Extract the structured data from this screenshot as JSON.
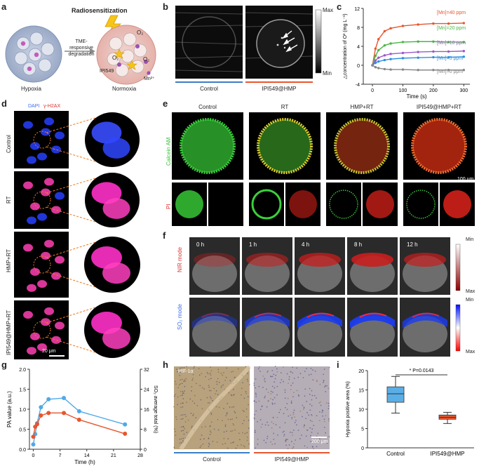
{
  "panels": [
    "a",
    "b",
    "c",
    "d",
    "e",
    "f",
    "g",
    "h",
    "i"
  ],
  "a": {
    "title": "Radiosensitization",
    "arrow_text": "TME-responsive degradation",
    "arrow_line1": "TME-responsive",
    "arrow_line2": "degradation",
    "o2_label": "O₂",
    "drug_label": "IPI549",
    "mn_label": "Mn²⁺",
    "left_caption": "Hypoxia",
    "right_caption": "Normoxia"
  },
  "b": {
    "scale_max": "Max",
    "scale_min": "Min",
    "groups": [
      "Control",
      "IPI549@HMP"
    ],
    "colors": {
      "control": "#3b7fc4",
      "treated": "#e8552e"
    }
  },
  "c": {
    "ylabel": "△concentration of O² (mg L⁻¹)",
    "xlabel": "Time (s)",
    "xticks": [
      "0",
      "100",
      "200",
      "300"
    ],
    "yticks": [
      "-4",
      "0",
      "4",
      "8",
      "12"
    ]
  },
  "chart_data": [
    {
      "type": "line",
      "panel": "c",
      "xlabel": "Time (s)",
      "ylabel": "△concentration of O² (mg L⁻¹)",
      "xlim": [
        -30,
        320
      ],
      "ylim": [
        -4,
        12
      ],
      "series": [
        {
          "name": "[Mn]=40 ppm",
          "color": "#e8552e",
          "x": [
            0,
            10,
            20,
            40,
            60,
            100,
            150,
            200,
            250,
            300
          ],
          "y": [
            0,
            3.5,
            5.5,
            7.2,
            7.8,
            8.3,
            8.6,
            8.8,
            8.8,
            8.9
          ]
        },
        {
          "name": "[Mn]=20 ppm",
          "color": "#4bb543",
          "x": [
            0,
            10,
            20,
            40,
            60,
            100,
            150,
            200,
            250,
            300
          ],
          "y": [
            0,
            2.0,
            3.2,
            4.2,
            4.6,
            4.9,
            5.0,
            5.0,
            4.9,
            4.9
          ]
        },
        {
          "name": "[Mn]=10 ppm",
          "color": "#9b59c9",
          "x": [
            0,
            10,
            20,
            40,
            60,
            100,
            150,
            200,
            250,
            300
          ],
          "y": [
            0,
            1.0,
            1.6,
            2.1,
            2.4,
            2.6,
            2.8,
            2.9,
            2.9,
            3.0
          ]
        },
        {
          "name": "[Mn]=5 ppm",
          "color": "#2f8fe0",
          "x": [
            0,
            10,
            20,
            40,
            60,
            100,
            150,
            200,
            250,
            300
          ],
          "y": [
            0,
            0.5,
            0.8,
            1.1,
            1.3,
            1.5,
            1.6,
            1.7,
            1.7,
            1.8
          ]
        },
        {
          "name": "[Mn]=0 ppm",
          "color": "#888888",
          "x": [
            0,
            10,
            20,
            40,
            60,
            100,
            150,
            200,
            250,
            300
          ],
          "y": [
            0,
            -0.4,
            -0.6,
            -0.8,
            -0.9,
            -0.9,
            -1.0,
            -1.0,
            -1.0,
            -1.0
          ]
        }
      ]
    },
    {
      "type": "line",
      "panel": "g",
      "xlabel": "Time (h)",
      "ylabel": "PA value (a.u.)",
      "y2label": "SO₂ average total (%)",
      "xlim": [
        -1,
        28
      ],
      "ylim": [
        0,
        2.0
      ],
      "y2lim": [
        0,
        32
      ],
      "series": [
        {
          "name": "PA value",
          "axis": "left",
          "color": "#4fa9e8",
          "x": [
            0,
            0.5,
            1,
            2,
            4,
            8,
            12,
            24
          ],
          "y": [
            0.12,
            0.38,
            0.65,
            1.05,
            1.25,
            1.28,
            0.95,
            0.62
          ]
        },
        {
          "name": "SO₂ average total",
          "axis": "right",
          "color": "#e8552e",
          "x": [
            0,
            0.5,
            1,
            2,
            4,
            8,
            12,
            24
          ],
          "y": [
            5,
            9,
            10,
            13.5,
            14.5,
            14.5,
            11.8,
            6.2
          ]
        }
      ]
    },
    {
      "type": "box",
      "panel": "i",
      "ylabel": "Hypoxia positive area (%)",
      "ylim": [
        0,
        20
      ],
      "categories": [
        "Control",
        "IPI549@HMP"
      ],
      "boxes": [
        {
          "name": "Control",
          "color": "#5aaee6",
          "min": 9,
          "q1": 11.8,
          "median": 14,
          "q3": 15.8,
          "max": 18.5
        },
        {
          "name": "IPI549@HMP",
          "color": "#e8552e",
          "min": 6.3,
          "q1": 7.4,
          "median": 7.9,
          "q3": 8.5,
          "max": 9.2
        }
      ],
      "annotation": "* P=0.0143"
    }
  ],
  "d": {
    "legend_dapi": "DAPI",
    "legend_h2ax": "γ-H2AX",
    "rows": [
      "Control",
      "RT",
      "HMP+RT",
      "IPI549@HMP+RT"
    ],
    "scale": "20 μm"
  },
  "e": {
    "cols": [
      "Control",
      "RT",
      "HMP+RT",
      "IPI549@HMP+RT"
    ],
    "row1": "Calcein AM",
    "row2": "PI",
    "scale": "100 μm"
  },
  "f": {
    "times": [
      "0 h",
      "1 h",
      "4 h",
      "8 h",
      "12 h"
    ],
    "row1": "NIR mode",
    "row2": "SO₂ mode",
    "scale_min": "Min",
    "scale_max": "Max"
  },
  "g": {
    "ylabel": "PA value (a.u.)",
    "y2label": "SO₂ average total (%)",
    "xlabel": "Time (h)",
    "xticks": [
      "0",
      "7",
      "14",
      "21",
      "28"
    ],
    "yticks": [
      "0.0",
      "0.5",
      "1.0",
      "1.5",
      "2.0"
    ],
    "y2ticks": [
      "0",
      "8",
      "16",
      "24",
      "32"
    ]
  },
  "h": {
    "stain": "HIF-1α",
    "groups": [
      "Control",
      "IPI549@HMP"
    ],
    "scale": "200 μm"
  },
  "i": {
    "ylabel": "Hypoxia positive area (%)",
    "yticks": [
      "0",
      "5",
      "10",
      "15",
      "20"
    ],
    "annotation": "* P=0.0143"
  }
}
